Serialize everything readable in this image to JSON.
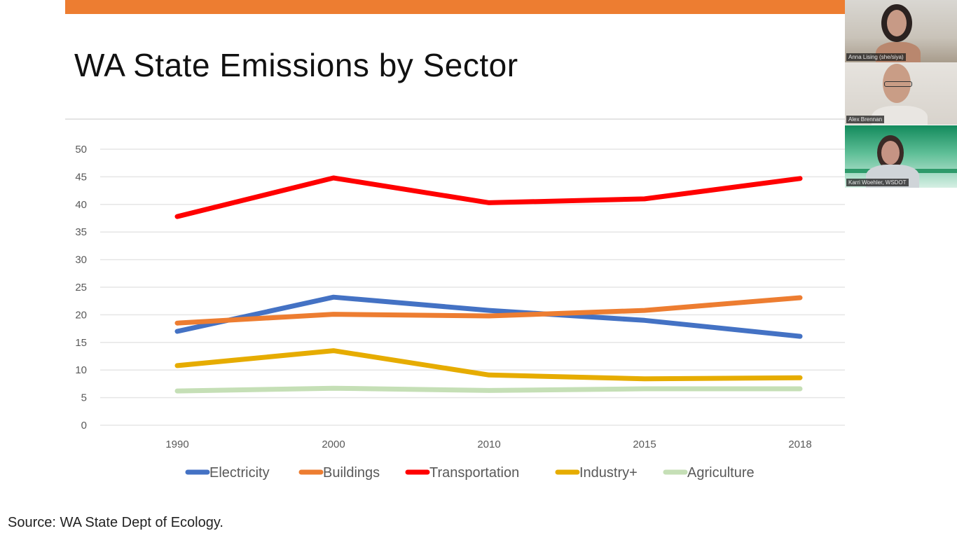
{
  "slide": {
    "title": "WA State Emissions by Sector",
    "source": "Source: WA State Dept of Ecology.",
    "accent_color": "#ed7d31"
  },
  "participants": [
    {
      "name": "Anna Lising (she/siya)"
    },
    {
      "name": "Alex Brennan"
    },
    {
      "name": "Karri Woehler, WSDOT"
    }
  ],
  "chart_data": {
    "type": "line",
    "title": "WA State Emissions by Sector",
    "xlabel": "",
    "ylabel": "",
    "categories": [
      "1990",
      "2000",
      "2010",
      "2015",
      "2018"
    ],
    "ylim": [
      0,
      50
    ],
    "yticks": [
      0,
      5,
      10,
      15,
      20,
      25,
      30,
      35,
      40,
      45,
      50
    ],
    "grid": true,
    "legend": "bottom",
    "series": [
      {
        "name": "Electricity",
        "color": "#4472c4",
        "values": [
          17.0,
          23.2,
          20.8,
          19.0,
          16.1
        ]
      },
      {
        "name": "Buildings",
        "color": "#ed7d31",
        "values": [
          18.5,
          20.1,
          19.8,
          20.8,
          23.1
        ]
      },
      {
        "name": "Transportation",
        "color": "#ff0000",
        "values": [
          37.8,
          44.8,
          40.3,
          41.0,
          44.7
        ]
      },
      {
        "name": "Industry+",
        "color": "#e6ac00",
        "values": [
          10.8,
          13.5,
          9.1,
          8.4,
          8.6
        ]
      },
      {
        "name": "Agriculture",
        "color": "#c5dfb6",
        "values": [
          6.2,
          6.7,
          6.3,
          6.6,
          6.6
        ]
      }
    ]
  }
}
